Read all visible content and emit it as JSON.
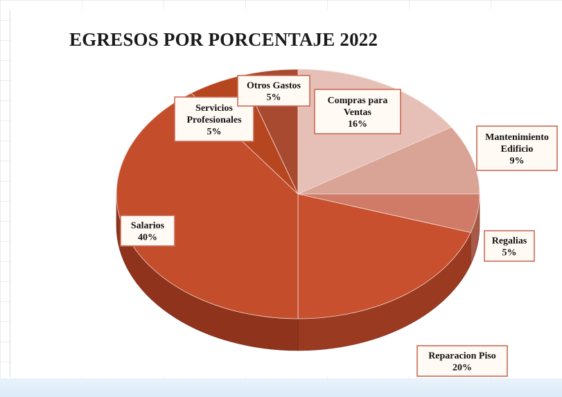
{
  "chart_data": {
    "type": "pie",
    "title": "EGRESOS POR PORCENTAJE 2022",
    "slices": [
      {
        "name": "Compras para Ventas",
        "lines": [
          "Compras para",
          "Ventas"
        ],
        "value": 16,
        "pct": "16%",
        "color": "#e6c0b6",
        "side": "#c9a095"
      },
      {
        "name": "Mantenimiento Edificio",
        "lines": [
          "Mantenimiento",
          "Edificio"
        ],
        "value": 9,
        "pct": "9%",
        "color": "#d9a396",
        "side": "#b9806f"
      },
      {
        "name": "Regalias",
        "lines": [
          "Regalias"
        ],
        "value": 5,
        "pct": "5%",
        "color": "#cf7b68",
        "side": "#a85a48"
      },
      {
        "name": "Reparacion Piso",
        "lines": [
          "Reparacion Piso"
        ],
        "value": 20,
        "pct": "20%",
        "color": "#c8502f",
        "side": "#9a3a20"
      },
      {
        "name": "Salarios",
        "lines": [
          "Salarios"
        ],
        "value": 40,
        "pct": "40%",
        "color": "#c44d2b",
        "side": "#8f331c"
      },
      {
        "name": "Servicios Profesionales",
        "lines": [
          "Servicios",
          "Profesionales"
        ],
        "value": 5,
        "pct": "5%",
        "color": "#b6461f",
        "side": "#853115"
      },
      {
        "name": "Otros Gastos",
        "lines": [
          "Otros Gastos"
        ],
        "value": 5,
        "pct": "5%",
        "color": "#a84a30",
        "side": "#7a3220"
      }
    ],
    "legend": "none"
  }
}
